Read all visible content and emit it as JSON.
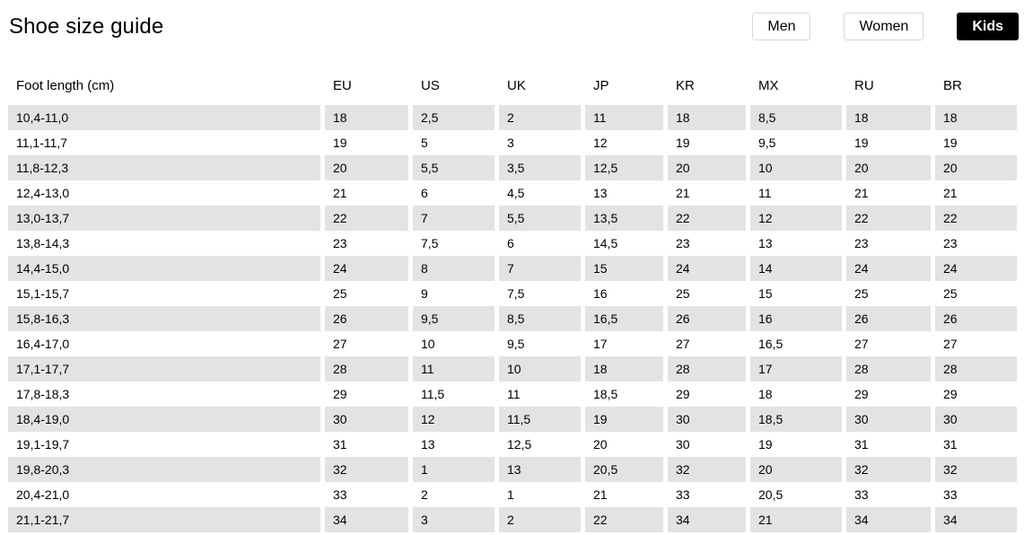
{
  "title": "Shoe size guide",
  "toggles": [
    {
      "label": "Men",
      "active": false
    },
    {
      "label": "Women",
      "active": false
    },
    {
      "label": "Kids",
      "active": true
    }
  ],
  "colors": {
    "accent": "#000000",
    "stripe": "#e3e3e3",
    "button_border": "#d6d6d6"
  },
  "table": {
    "headers": [
      "Foot length (cm)",
      "EU",
      "US",
      "UK",
      "JP",
      "KR",
      "MX",
      "RU",
      "BR"
    ],
    "rows": [
      [
        "10,4-11,0",
        "18",
        "2,5",
        "2",
        "11",
        "18",
        "8,5",
        "18",
        "18"
      ],
      [
        "11,1-11,7",
        "19",
        "5",
        "3",
        "12",
        "19",
        "9,5",
        "19",
        "19"
      ],
      [
        "11,8-12,3",
        "20",
        "5,5",
        "3,5",
        "12,5",
        "20",
        "10",
        "20",
        "20"
      ],
      [
        "12,4-13,0",
        "21",
        "6",
        "4,5",
        "13",
        "21",
        "11",
        "21",
        "21"
      ],
      [
        "13,0-13,7",
        "22",
        "7",
        "5,5",
        "13,5",
        "22",
        "12",
        "22",
        "22"
      ],
      [
        "13,8-14,3",
        "23",
        "7,5",
        "6",
        "14,5",
        "23",
        "13",
        "23",
        "23"
      ],
      [
        "14,4-15,0",
        "24",
        "8",
        "7",
        "15",
        "24",
        "14",
        "24",
        "24"
      ],
      [
        "15,1-15,7",
        "25",
        "9",
        "7,5",
        "16",
        "25",
        "15",
        "25",
        "25"
      ],
      [
        "15,8-16,3",
        "26",
        "9,5",
        "8,5",
        "16,5",
        "26",
        "16",
        "26",
        "26"
      ],
      [
        "16,4-17,0",
        "27",
        "10",
        "9,5",
        "17",
        "27",
        "16,5",
        "27",
        "27"
      ],
      [
        "17,1-17,7",
        "28",
        "11",
        "10",
        "18",
        "28",
        "17",
        "28",
        "28"
      ],
      [
        "17,8-18,3",
        "29",
        "11,5",
        "11",
        "18,5",
        "29",
        "18",
        "29",
        "29"
      ],
      [
        "18,4-19,0",
        "30",
        "12",
        "11,5",
        "19",
        "30",
        "18,5",
        "30",
        "30"
      ],
      [
        "19,1-19,7",
        "31",
        "13",
        "12,5",
        "20",
        "30",
        "19",
        "31",
        "31"
      ],
      [
        "19,8-20,3",
        "32",
        "1",
        "13",
        "20,5",
        "32",
        "20",
        "32",
        "32"
      ],
      [
        "20,4-21,0",
        "33",
        "2",
        "1",
        "21",
        "33",
        "20,5",
        "33",
        "33"
      ],
      [
        "21,1-21,7",
        "34",
        "3",
        "2",
        "22",
        "34",
        "21",
        "34",
        "34"
      ]
    ]
  }
}
